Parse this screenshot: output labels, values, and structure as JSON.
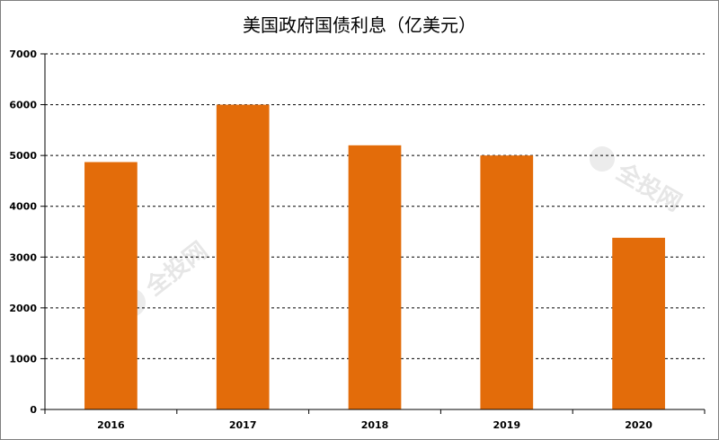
{
  "chart_data": {
    "type": "bar",
    "title": "美国政府国债利息（亿美元）",
    "categories": [
      "2016",
      "2017",
      "2018",
      "2019",
      "2020"
    ],
    "values": [
      4870,
      6000,
      5200,
      5000,
      3380
    ],
    "ylim": [
      0,
      7000
    ],
    "yticks": [
      0,
      1000,
      2000,
      3000,
      4000,
      5000,
      6000,
      7000
    ],
    "grid": true,
    "bar_color": "#E36C0A"
  },
  "watermark": {
    "text": "全投网",
    "color": "#e6e6e6"
  }
}
